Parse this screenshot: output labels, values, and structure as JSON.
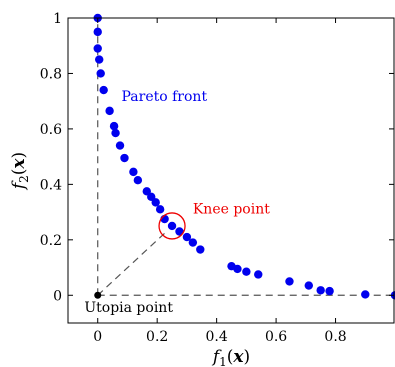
{
  "chart_data": {
    "type": "scatter",
    "xlabel": "f1(x)",
    "ylabel": "f2(x)",
    "xlim": [
      -0.1,
      1.0
    ],
    "ylim": [
      -0.1,
      1.0
    ],
    "x_ticks": [
      0,
      0.2,
      0.4,
      0.6,
      0.8
    ],
    "y_ticks": [
      0,
      0.2,
      0.4,
      0.6,
      0.8,
      1
    ],
    "x_tick_labels": [
      "0",
      "0.2",
      "0.4",
      "0.6",
      "0.8"
    ],
    "y_tick_labels": [
      "0",
      "0.2",
      "0.4",
      "0.6",
      "0.8",
      "1"
    ],
    "grid": false,
    "series": [
      {
        "color": "#0000ee",
        "points": [
          [
            0.0,
            1.0
          ],
          [
            0.0,
            0.95
          ],
          [
            0.0,
            0.89
          ],
          [
            0.005,
            0.85
          ],
          [
            0.01,
            0.8
          ],
          [
            0.02,
            0.74
          ],
          [
            0.04,
            0.665
          ],
          [
            0.055,
            0.61
          ],
          [
            0.06,
            0.585
          ],
          [
            0.075,
            0.54
          ],
          [
            0.09,
            0.495
          ],
          [
            0.12,
            0.445
          ],
          [
            0.135,
            0.415
          ],
          [
            0.165,
            0.375
          ],
          [
            0.18,
            0.355
          ],
          [
            0.195,
            0.335
          ],
          [
            0.21,
            0.31
          ],
          [
            0.225,
            0.275
          ],
          [
            0.25,
            0.25
          ],
          [
            0.275,
            0.23
          ],
          [
            0.3,
            0.21
          ],
          [
            0.32,
            0.19
          ],
          [
            0.345,
            0.165
          ],
          [
            0.45,
            0.105
          ],
          [
            0.47,
            0.095
          ],
          [
            0.5,
            0.085
          ],
          [
            0.54,
            0.075
          ],
          [
            0.645,
            0.05
          ],
          [
            0.71,
            0.035
          ],
          [
            0.75,
            0.018
          ],
          [
            0.78,
            0.015
          ],
          [
            0.9,
            0.003
          ],
          [
            1.0,
            0.0
          ]
        ]
      }
    ],
    "utopia_point": [
      0,
      0
    ],
    "knee_point": [
      0.25,
      0.25
    ],
    "annotations": {
      "pareto": {
        "text": "Pareto front",
        "color": "#0000ee",
        "at": [
          0.08,
          0.7
        ]
      },
      "knee": {
        "text": "Knee point",
        "color": "#ee0000",
        "at": [
          0.32,
          0.295
        ]
      },
      "utopia": {
        "text": "Utopia point",
        "color": "#000000",
        "at": [
          -0.045,
          -0.06
        ]
      }
    },
    "colors": {
      "axis": "#000000",
      "guide_lines": "#555555"
    }
  }
}
